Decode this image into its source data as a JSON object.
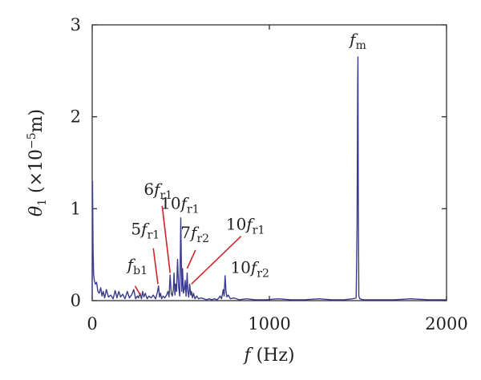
{
  "chart_data": {
    "type": "line",
    "title": "",
    "xlabel": {
      "main": "f",
      "unit": " (Hz)"
    },
    "ylabel": {
      "symbol": "θ",
      "sub": "1",
      "pre": " (×10",
      "exp": "−5",
      "post": "m)"
    },
    "xlim": [
      0,
      2000
    ],
    "ylim": [
      0,
      3
    ],
    "xticks": [
      0,
      1000,
      2000
    ],
    "yticks": [
      0,
      1,
      2,
      3
    ],
    "grid": false,
    "colors": {
      "series": "#3b3b8c",
      "annotation_line": "#d2232a",
      "axis": "#231f20"
    },
    "series": [
      {
        "x": [
          0,
          2,
          5,
          8,
          12,
          18,
          25,
          32,
          40,
          48,
          55,
          62,
          70,
          80,
          92,
          105,
          118,
          130,
          140,
          150,
          160,
          172,
          185,
          198,
          210,
          222,
          235,
          245,
          255,
          262,
          270,
          278,
          285,
          292,
          300,
          310,
          320,
          332,
          345,
          358,
          368,
          374,
          380,
          386,
          392,
          400,
          410,
          420,
          428,
          434,
          440,
          446,
          452,
          458,
          462,
          467,
          471,
          476,
          482,
          488,
          494,
          497,
          500,
          503,
          506,
          510,
          515,
          520,
          525,
          530,
          536,
          540,
          545,
          550,
          556,
          560,
          566,
          572,
          580,
          590,
          600,
          615,
          630,
          645,
          660,
          675,
          690,
          705,
          715,
          722,
          730,
          736,
          740,
          745,
          750,
          755,
          760,
          768,
          780,
          800,
          830,
          870,
          920,
          980,
          1050,
          1120,
          1200,
          1280,
          1350,
          1420,
          1470,
          1490,
          1495,
          1498,
          1500,
          1502,
          1505,
          1510,
          1530,
          1600,
          1700,
          1800,
          1900,
          2000
        ],
        "y": [
          0.05,
          1.3,
          0.55,
          0.28,
          0.22,
          0.18,
          0.2,
          0.1,
          0.08,
          0.14,
          0.05,
          0.1,
          0.03,
          0.12,
          0.04,
          0.06,
          0.02,
          0.11,
          0.03,
          0.1,
          0.04,
          0.07,
          0.02,
          0.1,
          0.03,
          0.06,
          0.12,
          0.02,
          0.05,
          0.03,
          0.08,
          0.02,
          0.1,
          0.04,
          0.08,
          0.02,
          0.05,
          0.03,
          0.06,
          0.02,
          0.09,
          0.16,
          0.04,
          0.08,
          0.02,
          0.05,
          0.03,
          0.06,
          0.1,
          0.04,
          0.28,
          0.08,
          0.05,
          0.12,
          0.3,
          0.06,
          0.18,
          0.1,
          0.45,
          0.15,
          0.05,
          0.4,
          0.9,
          0.42,
          0.1,
          0.35,
          0.08,
          0.12,
          0.22,
          0.05,
          0.3,
          0.1,
          0.04,
          0.18,
          0.06,
          0.1,
          0.03,
          0.08,
          0.02,
          0.05,
          0.02,
          0.03,
          0.02,
          0.01,
          0.02,
          0.01,
          0.02,
          0.01,
          0.03,
          0.05,
          0.02,
          0.08,
          0.12,
          0.05,
          0.27,
          0.1,
          0.04,
          0.06,
          0.02,
          0.03,
          0.01,
          0.02,
          0.01,
          0.01,
          0.02,
          0.01,
          0.01,
          0.02,
          0.01,
          0.01,
          0.02,
          0.03,
          0.8,
          2.3,
          2.65,
          1.2,
          0.05,
          0.02,
          0.01,
          0.01,
          0.01,
          0.02,
          0.01,
          0.01
        ]
      }
    ],
    "annotations": [
      {
        "id": "fm",
        "main": "f",
        "sub": "m",
        "tx": 1500,
        "ty": 2.78
      },
      {
        "id": "6fr1",
        "main": "6f",
        "sub": "r1",
        "tx": 372,
        "ty": 1.15,
        "line": [
          [
            395,
            1.03
          ],
          [
            440,
            0.3
          ]
        ]
      },
      {
        "id": "10fr1-a",
        "main": "10f",
        "sub": "r1",
        "tx": 495,
        "ty": 1.0
      },
      {
        "id": "5fr1",
        "main": "5f",
        "sub": "r1",
        "tx": 300,
        "ty": 0.72,
        "line": [
          [
            345,
            0.57
          ],
          [
            371,
            0.18
          ]
        ]
      },
      {
        "id": "7fr2",
        "main": "7f",
        "sub": "r2",
        "tx": 580,
        "ty": 0.68,
        "line": [
          [
            583,
            0.55
          ],
          [
            536,
            0.35
          ]
        ]
      },
      {
        "id": "10fr1-b",
        "main": "10f",
        "sub": "r1",
        "tx": 865,
        "ty": 0.77,
        "line": [
          [
            840,
            0.7
          ],
          [
            560,
            0.18
          ]
        ]
      },
      {
        "id": "fb1",
        "main": "f",
        "sub": "b1",
        "tx": 255,
        "ty": 0.33,
        "line": [
          [
            242,
            0.16
          ],
          [
            272,
            0.06
          ]
        ]
      },
      {
        "id": "10fr2",
        "main": "10f",
        "sub": "r2",
        "tx": 890,
        "ty": 0.3
      }
    ]
  }
}
